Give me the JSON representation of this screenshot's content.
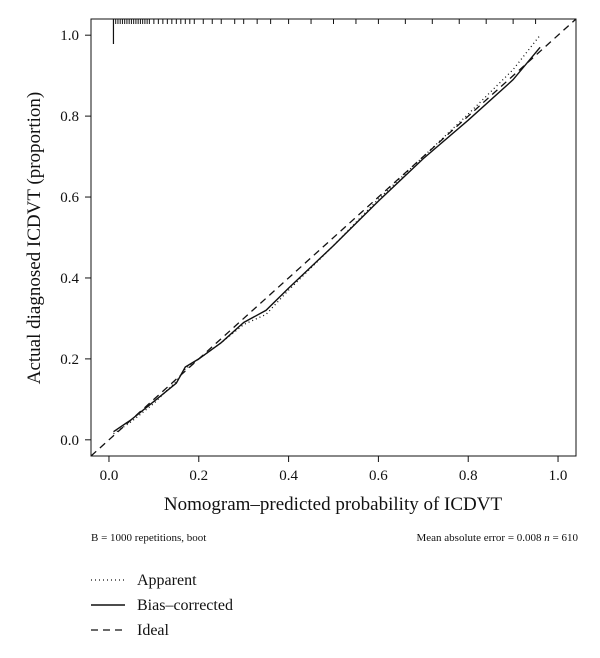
{
  "chart_data": {
    "type": "line",
    "xlabel": "Nomogram–predicted probability of ICDVT",
    "ylabel": "Actual diagnosed ICDVT (proportion)",
    "xlim": [
      -0.04,
      1.04
    ],
    "ylim": [
      -0.04,
      1.04
    ],
    "x_ticks": [
      0.0,
      0.2,
      0.4,
      0.6,
      0.8,
      1.0
    ],
    "x_tick_labels": [
      "0.0",
      "0.2",
      "0.4",
      "0.6",
      "0.8",
      "1.0"
    ],
    "y_ticks": [
      0.0,
      0.2,
      0.4,
      0.6,
      0.8,
      1.0
    ],
    "y_tick_labels": [
      "0.0",
      "0.2",
      "0.4",
      "0.6",
      "0.8",
      "1.0"
    ],
    "grid": false,
    "legend_position": "below-left",
    "series": [
      {
        "name": "Apparent",
        "style": "dotted",
        "x": [
          0.01,
          0.05,
          0.1,
          0.15,
          0.17,
          0.2,
          0.25,
          0.3,
          0.35,
          0.4,
          0.5,
          0.6,
          0.7,
          0.8,
          0.9,
          0.96
        ],
        "y": [
          0.015,
          0.045,
          0.09,
          0.145,
          0.175,
          0.2,
          0.24,
          0.285,
          0.31,
          0.37,
          0.48,
          0.595,
          0.7,
          0.805,
          0.915,
          1.0
        ]
      },
      {
        "name": "Bias–corrected",
        "style": "solid",
        "x": [
          0.01,
          0.05,
          0.1,
          0.15,
          0.17,
          0.2,
          0.25,
          0.3,
          0.35,
          0.4,
          0.5,
          0.6,
          0.7,
          0.8,
          0.9,
          0.96
        ],
        "y": [
          0.02,
          0.05,
          0.095,
          0.14,
          0.18,
          0.2,
          0.24,
          0.29,
          0.32,
          0.375,
          0.48,
          0.59,
          0.695,
          0.79,
          0.89,
          0.97
        ]
      },
      {
        "name": "Ideal",
        "style": "dashed",
        "x": [
          -0.04,
          1.04
        ],
        "y": [
          -0.04,
          1.04
        ]
      }
    ],
    "rug_x": [
      0.015,
      0.02,
      0.025,
      0.03,
      0.035,
      0.04,
      0.045,
      0.05,
      0.055,
      0.06,
      0.065,
      0.07,
      0.075,
      0.08,
      0.085,
      0.09,
      0.1,
      0.11,
      0.12,
      0.13,
      0.14,
      0.15,
      0.16,
      0.17,
      0.18,
      0.19,
      0.21,
      0.23,
      0.25,
      0.28,
      0.3,
      0.33,
      0.36,
      0.4,
      0.45,
      0.5,
      0.55,
      0.6,
      0.66,
      0.72,
      0.78,
      0.84,
      0.9,
      0.95
    ],
    "rug_spike_x": 0.01,
    "annotations": {
      "left": "B = 1000 repetitions, boot",
      "right_prefix": "Mean absolute error = 0.008 ",
      "right_n_symbol": "n",
      "right_n_value": " = 610"
    }
  },
  "legend": [
    {
      "label": "Apparent",
      "style": "dotted"
    },
    {
      "label": "Bias–corrected",
      "style": "solid"
    },
    {
      "label": "Ideal",
      "style": "dashed"
    }
  ]
}
